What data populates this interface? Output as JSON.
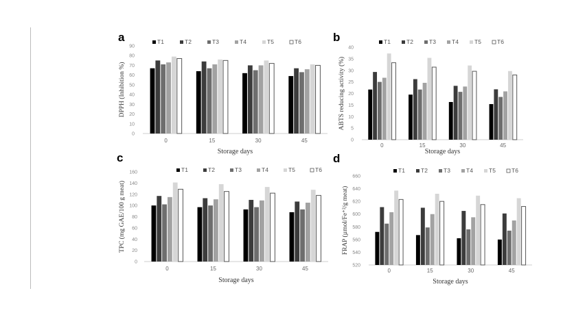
{
  "chart_data": [
    {
      "type": "bar",
      "panel": "a",
      "categories": [
        "0",
        "15",
        "30",
        "45"
      ],
      "xlabel": "Storage days",
      "ylabel": "DPPH (Inhibition %)",
      "ylim": [
        0,
        90
      ],
      "yticks": [
        0,
        10,
        20,
        30,
        40,
        50,
        60,
        70,
        80,
        90
      ],
      "legend": "top",
      "series": [
        {
          "name": "T1",
          "values": [
            67,
            64,
            62,
            59
          ]
        },
        {
          "name": "T2",
          "values": [
            75,
            74,
            70,
            67
          ]
        },
        {
          "name": "T3",
          "values": [
            71,
            67,
            65,
            63
          ]
        },
        {
          "name": "T4",
          "values": [
            73,
            71,
            70,
            66
          ]
        },
        {
          "name": "T5",
          "values": [
            79,
            76,
            75,
            71
          ]
        },
        {
          "name": "T6",
          "values": [
            77,
            75,
            72,
            70
          ]
        }
      ]
    },
    {
      "type": "bar",
      "panel": "b",
      "categories": [
        "0",
        "15",
        "30",
        "45"
      ],
      "xlabel": "Storage days",
      "ylabel": "ABTS reducing activity  (%)",
      "ylim": [
        0,
        40
      ],
      "yticks": [
        0,
        5,
        10,
        15,
        20,
        25,
        30,
        35,
        40
      ],
      "legend": "top",
      "series": [
        {
          "name": "T1",
          "values": [
            21.7,
            19.5,
            16.3,
            15.4
          ]
        },
        {
          "name": "T2",
          "values": [
            29.3,
            26.2,
            23.3,
            21.8
          ]
        },
        {
          "name": "T3",
          "values": [
            25.0,
            21.7,
            20.7,
            18.5
          ]
        },
        {
          "name": "T4",
          "values": [
            26.8,
            24.6,
            23.0,
            20.9
          ]
        },
        {
          "name": "T5",
          "values": [
            37.3,
            35.4,
            32.1,
            29.7
          ]
        },
        {
          "name": "T6",
          "values": [
            33.3,
            31.4,
            29.6,
            28.0
          ]
        }
      ]
    },
    {
      "type": "bar",
      "panel": "c",
      "categories": [
        "0",
        "15",
        "30",
        "45"
      ],
      "xlabel": "Storage days",
      "ylabel": "TPC (mg GAE/100 g meat)",
      "ylim": [
        0,
        160
      ],
      "yticks": [
        0,
        20,
        40,
        60,
        80,
        100,
        120,
        140,
        160
      ],
      "legend": "top",
      "series": [
        {
          "name": "T1",
          "values": [
            100,
            97,
            93,
            88
          ]
        },
        {
          "name": "T2",
          "values": [
            117,
            113,
            110,
            107
          ]
        },
        {
          "name": "T3",
          "values": [
            102,
            100,
            97,
            93
          ]
        },
        {
          "name": "T4",
          "values": [
            115,
            111,
            109,
            105
          ]
        },
        {
          "name": "T5",
          "values": [
            141,
            138,
            133,
            128
          ]
        },
        {
          "name": "T6",
          "values": [
            129,
            125,
            122,
            118
          ]
        }
      ]
    },
    {
      "type": "bar",
      "panel": "d",
      "categories": [
        "0",
        "15",
        "30",
        "45"
      ],
      "xlabel": "Storage days",
      "ylabel": "FRAP (µmol/Fe⁺²/g meat)",
      "ylim": [
        520,
        660
      ],
      "yticks": [
        520,
        540,
        560,
        580,
        600,
        620,
        640,
        660
      ],
      "legend": "top",
      "series": [
        {
          "name": "T1",
          "values": [
            572,
            567,
            562,
            560
          ]
        },
        {
          "name": "T2",
          "values": [
            611,
            610,
            605,
            601
          ]
        },
        {
          "name": "T3",
          "values": [
            585,
            579,
            576,
            574
          ]
        },
        {
          "name": "T4",
          "values": [
            603,
            600,
            595,
            590
          ]
        },
        {
          "name": "T5",
          "values": [
            637,
            632,
            629,
            625
          ]
        },
        {
          "name": "T6",
          "values": [
            623,
            620,
            615,
            612
          ]
        }
      ]
    }
  ],
  "series_colors": [
    "#000000",
    "#3c3c3c",
    "#6e6e6e",
    "#a2a2a2",
    "#d6d6d6",
    "#ffffff"
  ]
}
